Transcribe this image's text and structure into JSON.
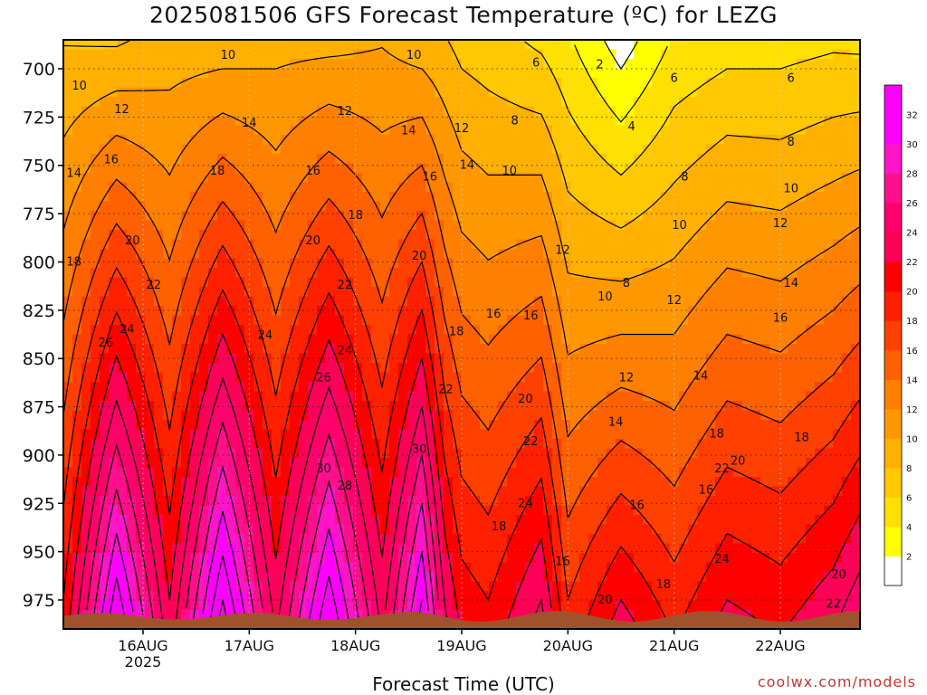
{
  "title": "2025081506 GFS Forecast Temperature (ºC) for LEZG",
  "credit": "coolwx.com/models",
  "colors": {
    "surface": "#a0522d",
    "bands": [
      "#ffffff",
      "#ffff00",
      "#ffe000",
      "#ffc800",
      "#ffb000",
      "#ff9800",
      "#ff7f00",
      "#ff6000",
      "#ff4000",
      "#ff2000",
      "#ff0000",
      "#ff0058",
      "#ff006c",
      "#ff0f8c",
      "#ff14c8",
      "#ff00ff",
      "#ff00ff"
    ]
  },
  "chart_data": {
    "type": "heatmap",
    "title": "2025081506 GFS Forecast Temperature (ºC) for LEZG",
    "xlabel": "Forecast Time (UTC)",
    "ylabel": "",
    "x_ticks": [
      "16AUG",
      "17AUG",
      "18AUG",
      "19AUG",
      "20AUG",
      "21AUG",
      "22AUG"
    ],
    "x_year_label": "2025",
    "y_ticks": [
      700,
      725,
      750,
      775,
      800,
      825,
      850,
      875,
      900,
      925,
      950,
      975
    ],
    "y_axis": "pressure (hPa), increasing downward",
    "ylim": [
      685,
      990
    ],
    "xlim_days": [
      15.25,
      22.75
    ],
    "colorbar": {
      "levels": [
        2,
        4,
        6,
        8,
        10,
        12,
        14,
        16,
        18,
        20,
        22,
        24,
        26,
        28,
        30,
        32
      ],
      "min": 0,
      "max": 34,
      "orientation": "vertical",
      "placement": "right"
    },
    "contour_interval": 2,
    "grid": true,
    "profiles": [
      {
        "time": "2025-08-15T06",
        "t700": 8.5,
        "t975": 20
      },
      {
        "time": "2025-08-15T18",
        "t700": 9,
        "t975": 33
      },
      {
        "time": "2025-08-16T06",
        "t700": 9.5,
        "t975": 22
      },
      {
        "time": "2025-08-16T18",
        "t700": 10,
        "t975": 34
      },
      {
        "time": "2025-08-17T06",
        "t700": 10,
        "t975": 23
      },
      {
        "time": "2025-08-17T18",
        "t700": 10.5,
        "t975": 33
      },
      {
        "time": "2025-08-18T06",
        "t700": 10.5,
        "t975": 23
      },
      {
        "time": "2025-08-18T15",
        "t700": 10,
        "t975": 32
      },
      {
        "time": "2025-08-18T20",
        "t700": 9,
        "t975": 24
      },
      {
        "time": "2025-08-19T00",
        "t700": 8,
        "t975": 21
      },
      {
        "time": "2025-08-19T06",
        "t700": 7.5,
        "t975": 20
      },
      {
        "time": "2025-08-19T18",
        "t700": 6.5,
        "t975": 24
      },
      {
        "time": "2025-08-20T00",
        "t700": 5,
        "t975": 18
      },
      {
        "time": "2025-08-20T12",
        "t700": 2,
        "t975": 22
      },
      {
        "time": "2025-08-21T00",
        "t700": 5,
        "t975": 19
      },
      {
        "time": "2025-08-21T12",
        "t700": 6,
        "t975": 22
      },
      {
        "time": "2025-08-22T00",
        "t700": 6,
        "t975": 21
      },
      {
        "time": "2025-08-22T12",
        "t700": 6.5,
        "t975": 23
      },
      {
        "time": "2025-08-22T18",
        "t700": 6.5,
        "t975": 25
      }
    ],
    "contour_labels": [
      {
        "text": "10",
        "x_day": 15.4,
        "p": 709
      },
      {
        "text": "10",
        "x_day": 16.8,
        "p": 693
      },
      {
        "text": "10",
        "x_day": 18.55,
        "p": 693
      },
      {
        "text": "6",
        "x_day": 19.7,
        "p": 697
      },
      {
        "text": "2",
        "x_day": 20.3,
        "p": 698
      },
      {
        "text": "6",
        "x_day": 21.0,
        "p": 705
      },
      {
        "text": "6",
        "x_day": 22.1,
        "p": 705
      },
      {
        "text": "12",
        "x_day": 15.8,
        "p": 721
      },
      {
        "text": "12",
        "x_day": 17.9,
        "p": 722
      },
      {
        "text": "14",
        "x_day": 17.0,
        "p": 728
      },
      {
        "text": "8",
        "x_day": 19.5,
        "p": 727
      },
      {
        "text": "4",
        "x_day": 20.6,
        "p": 730
      },
      {
        "text": "14",
        "x_day": 18.5,
        "p": 732
      },
      {
        "text": "12",
        "x_day": 19.0,
        "p": 731
      },
      {
        "text": "8",
        "x_day": 22.1,
        "p": 738
      },
      {
        "text": "14",
        "x_day": 15.35,
        "p": 754
      },
      {
        "text": "16",
        "x_day": 15.7,
        "p": 747
      },
      {
        "text": "18",
        "x_day": 16.7,
        "p": 753
      },
      {
        "text": "16",
        "x_day": 17.6,
        "p": 753
      },
      {
        "text": "16",
        "x_day": 18.7,
        "p": 756
      },
      {
        "text": "14",
        "x_day": 19.05,
        "p": 750
      },
      {
        "text": "10",
        "x_day": 19.45,
        "p": 753
      },
      {
        "text": "8",
        "x_day": 21.1,
        "p": 756
      },
      {
        "text": "10",
        "x_day": 22.1,
        "p": 762
      },
      {
        "text": "18",
        "x_day": 18.0,
        "p": 776
      },
      {
        "text": "10",
        "x_day": 21.05,
        "p": 781
      },
      {
        "text": "12",
        "x_day": 22.0,
        "p": 780
      },
      {
        "text": "18",
        "x_day": 15.35,
        "p": 800
      },
      {
        "text": "20",
        "x_day": 15.9,
        "p": 789
      },
      {
        "text": "20",
        "x_day": 17.6,
        "p": 789
      },
      {
        "text": "20",
        "x_day": 18.6,
        "p": 797
      },
      {
        "text": "12",
        "x_day": 19.95,
        "p": 794
      },
      {
        "text": "22",
        "x_day": 16.1,
        "p": 812
      },
      {
        "text": "22",
        "x_day": 17.9,
        "p": 812
      },
      {
        "text": "8",
        "x_day": 20.55,
        "p": 811
      },
      {
        "text": "14",
        "x_day": 22.1,
        "p": 811
      },
      {
        "text": "10",
        "x_day": 20.35,
        "p": 818
      },
      {
        "text": "12",
        "x_day": 21.0,
        "p": 820
      },
      {
        "text": "16",
        "x_day": 19.3,
        "p": 827
      },
      {
        "text": "16",
        "x_day": 19.65,
        "p": 828
      },
      {
        "text": "16",
        "x_day": 22.0,
        "p": 829
      },
      {
        "text": "24",
        "x_day": 15.85,
        "p": 835
      },
      {
        "text": "18",
        "x_day": 18.95,
        "p": 836
      },
      {
        "text": "24",
        "x_day": 17.15,
        "p": 838
      },
      {
        "text": "26",
        "x_day": 15.65,
        "p": 842
      },
      {
        "text": "24",
        "x_day": 17.9,
        "p": 846
      },
      {
        "text": "26",
        "x_day": 17.7,
        "p": 860
      },
      {
        "text": "12",
        "x_day": 20.55,
        "p": 860
      },
      {
        "text": "14",
        "x_day": 21.25,
        "p": 859
      },
      {
        "text": "22",
        "x_day": 18.85,
        "p": 866
      },
      {
        "text": "20",
        "x_day": 19.6,
        "p": 871
      },
      {
        "text": "14",
        "x_day": 20.45,
        "p": 883
      },
      {
        "text": "18",
        "x_day": 21.4,
        "p": 889
      },
      {
        "text": "18",
        "x_day": 22.2,
        "p": 891
      },
      {
        "text": "22",
        "x_day": 19.65,
        "p": 893
      },
      {
        "text": "30",
        "x_day": 18.6,
        "p": 897
      },
      {
        "text": "20",
        "x_day": 21.6,
        "p": 903
      },
      {
        "text": "22",
        "x_day": 21.45,
        "p": 907
      },
      {
        "text": "30",
        "x_day": 17.7,
        "p": 907
      },
      {
        "text": "28",
        "x_day": 17.9,
        "p": 916
      },
      {
        "text": "16",
        "x_day": 21.3,
        "p": 918
      },
      {
        "text": "24",
        "x_day": 19.6,
        "p": 925
      },
      {
        "text": "16",
        "x_day": 20.65,
        "p": 926
      },
      {
        "text": "18",
        "x_day": 19.35,
        "p": 937
      },
      {
        "text": "24",
        "x_day": 21.45,
        "p": 954
      },
      {
        "text": "16",
        "x_day": 19.95,
        "p": 955
      },
      {
        "text": "20",
        "x_day": 22.55,
        "p": 962
      },
      {
        "text": "18",
        "x_day": 20.9,
        "p": 967
      },
      {
        "text": "20",
        "x_day": 20.35,
        "p": 975
      },
      {
        "text": "22",
        "x_day": 22.5,
        "p": 977
      }
    ]
  }
}
